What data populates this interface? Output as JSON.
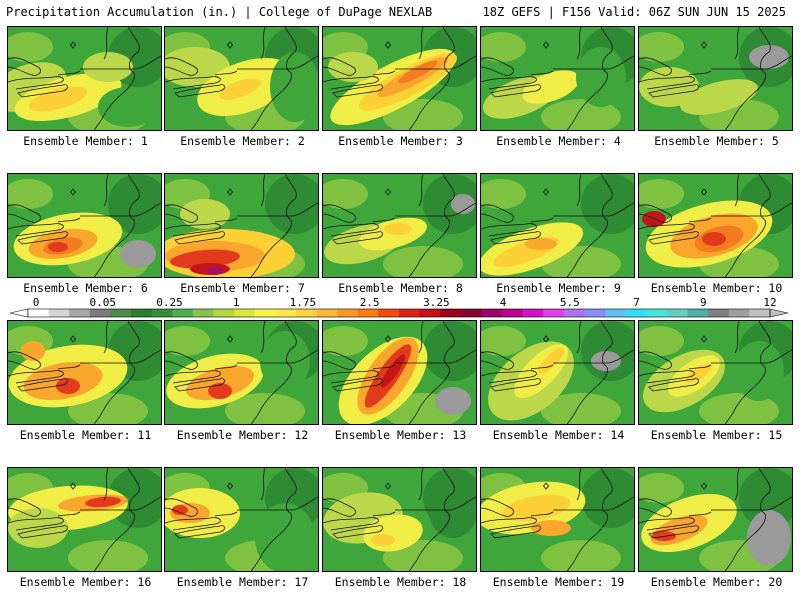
{
  "header": {
    "title_left": "Precipitation Accumulation (in.) | College of DuPage NEXLAB",
    "title_right": "18Z GEFS | F156 Valid: 06Z SUN JUN 15 2025"
  },
  "member_label_prefix": "Ensemble Member: ",
  "members": [
    {
      "id": 1,
      "label": "Ensemble Member: 1",
      "max_level": "1.75"
    },
    {
      "id": 2,
      "label": "Ensemble Member: 2",
      "max_level": "1.25"
    },
    {
      "id": 3,
      "label": "Ensemble Member: 3",
      "max_level": "3"
    },
    {
      "id": 4,
      "label": "Ensemble Member: 4",
      "max_level": "1.25"
    },
    {
      "id": 5,
      "label": "Ensemble Member: 5",
      "max_level": "1"
    },
    {
      "id": 6,
      "label": "Ensemble Member: 6",
      "max_level": "2.5"
    },
    {
      "id": 7,
      "label": "Ensemble Member: 7",
      "max_level": "4.5"
    },
    {
      "id": 8,
      "label": "Ensemble Member: 8",
      "max_level": "1.25"
    },
    {
      "id": 9,
      "label": "Ensemble Member: 9",
      "max_level": "1.75"
    },
    {
      "id": 10,
      "label": "Ensemble Member: 10",
      "max_level": "3"
    },
    {
      "id": 11,
      "label": "Ensemble Member: 11",
      "max_level": "2.5"
    },
    {
      "id": 12,
      "label": "Ensemble Member: 12",
      "max_level": "2.5"
    },
    {
      "id": 13,
      "label": "Ensemble Member: 13",
      "max_level": "3.5"
    },
    {
      "id": 14,
      "label": "Ensemble Member: 14",
      "max_level": "2"
    },
    {
      "id": 15,
      "label": "Ensemble Member: 15",
      "max_level": "1.25"
    },
    {
      "id": 16,
      "label": "Ensemble Member: 16",
      "max_level": "2.5"
    },
    {
      "id": 17,
      "label": "Ensemble Member: 17",
      "max_level": "2.5"
    },
    {
      "id": 18,
      "label": "Ensemble Member: 18",
      "max_level": "1.25"
    },
    {
      "id": 19,
      "label": "Ensemble Member: 19",
      "max_level": "1.5"
    },
    {
      "id": 20,
      "label": "Ensemble Member: 20",
      "max_level": "2.5"
    }
  ],
  "colorbar": {
    "tick_labels": [
      "0",
      "0.05",
      "0.25",
      "1",
      "1.75",
      "2.5",
      "3.25",
      "4",
      "5.5",
      "7",
      "9",
      "12"
    ],
    "colors": [
      "#ffffff",
      "#d6d6d6",
      "#a8a8a8",
      "#7c7c7c",
      "#4e8a4e",
      "#2e7d32",
      "#388e3c",
      "#4caf50",
      "#8bc34a",
      "#b5d93a",
      "#dbe83a",
      "#f5f542",
      "#ffe94a",
      "#ffd43b",
      "#ffb830",
      "#ff9a20",
      "#ff7a10",
      "#f44a10",
      "#e0201a",
      "#c8101a",
      "#a0001a",
      "#880030",
      "#a0006a",
      "#c0008a",
      "#d610c8",
      "#e040e8",
      "#b070f0",
      "#8890f8",
      "#60c0f8",
      "#30e0f8",
      "#40e8d8",
      "#60d0c0",
      "#50b0a8",
      "#808080",
      "#a0a0a0",
      "#c0c0c0"
    ]
  },
  "field_colors": {
    "dark_green": "#2f8a34",
    "green": "#3ea63a",
    "light_green": "#7fc242",
    "lime": "#bcd84a",
    "yellow": "#f0ee46",
    "gold": "#fdd036",
    "orange": "#f9a62c",
    "dark_orange": "#f27c1f",
    "red": "#e23a1d",
    "crimson": "#c4161a",
    "magenta": "#a0126a",
    "gray": "#9a9a9a"
  }
}
